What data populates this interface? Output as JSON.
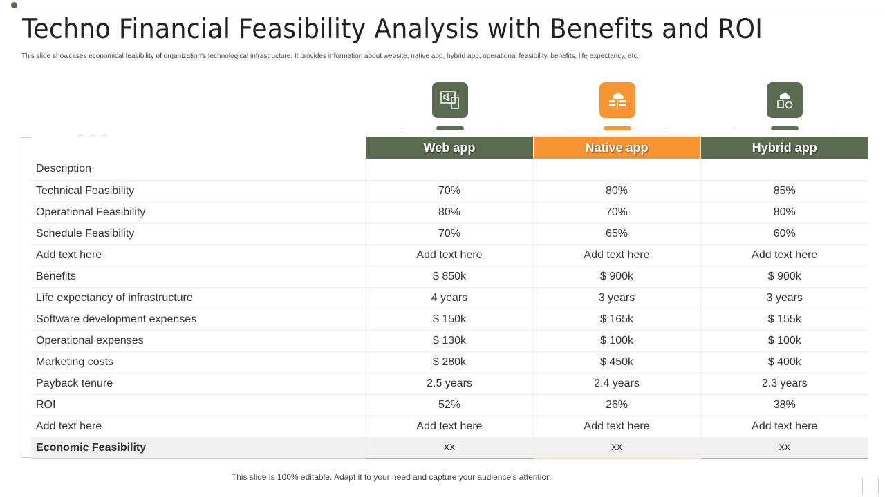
{
  "title": "Techno Financial Feasibility Analysis with Benefits and ROI",
  "subtitle": "This slide showcases economical feasibility of organization's technological infrastructure. It provides information about website, native app, hybrid app, operational feasibility, benefits, life expectancy, etc.",
  "colors": {
    "green": "#5a6b52",
    "orange": "#f79433"
  },
  "columns": [
    {
      "label": "Web app",
      "icon": "web-app-megaphone-icon"
    },
    {
      "label": "Native app",
      "icon": "cloud-server-icon"
    },
    {
      "label": "Hybrid app",
      "icon": "cloud-user-icon"
    }
  ],
  "rows": [
    {
      "label": "Description",
      "values": [
        "",
        "",
        ""
      ]
    },
    {
      "label": "Technical Feasibility",
      "values": [
        "70%",
        "80%",
        "85%"
      ]
    },
    {
      "label": "Operational Feasibility",
      "values": [
        "80%",
        "70%",
        "80%"
      ]
    },
    {
      "label": "Schedule Feasibility",
      "values": [
        "70%",
        "65%",
        "60%"
      ]
    },
    {
      "label": "Add text here",
      "values": [
        "Add text here",
        "Add text here",
        "Add text here"
      ]
    },
    {
      "label": "Benefits",
      "values": [
        "$ 850k",
        "$ 900k",
        "$ 900k"
      ]
    },
    {
      "label": "Life expectancy  of infrastructure",
      "values": [
        "4 years",
        "3 years",
        "3 years"
      ]
    },
    {
      "label": "Software development expenses",
      "values": [
        "$ 150k",
        "$ 165k",
        "$ 155k"
      ]
    },
    {
      "label": "Operational expenses",
      "values": [
        "$ 130k",
        "$ 100k",
        "$ 100k"
      ]
    },
    {
      "label": "Marketing costs",
      "values": [
        "$ 280k",
        "$ 450k",
        "$ 400k"
      ]
    },
    {
      "label": "Payback tenure",
      "values": [
        "2.5 years",
        "2.4 years",
        "2.3 years"
      ]
    },
    {
      "label": "ROI",
      "values": [
        "52%",
        "26%",
        "38%"
      ]
    },
    {
      "label": "Add text here",
      "values": [
        "Add text here",
        "Add text here",
        "Add text here"
      ]
    },
    {
      "label": "Economic Feasibility",
      "values": [
        "xx",
        "xx",
        "xx"
      ]
    }
  ],
  "footer": "This slide is 100% editable. Adapt it to your need and capture your audience's attention."
}
